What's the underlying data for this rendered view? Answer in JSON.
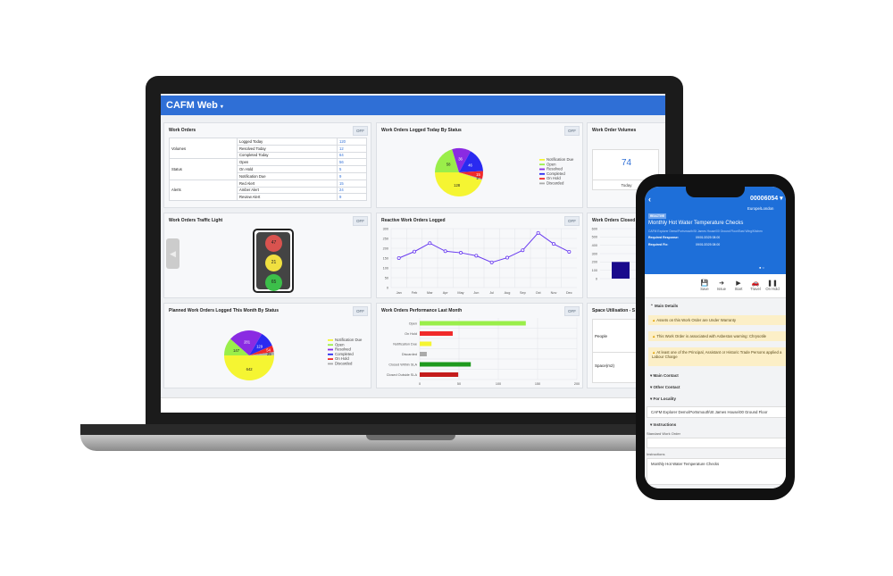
{
  "app": {
    "title": "CAFM Web",
    "caret": "▾"
  },
  "off_label": "OFF",
  "work_orders": {
    "title": "Work Orders",
    "groups": [
      {
        "name": "Volumes",
        "rows": [
          [
            "Logged Today",
            "120"
          ],
          [
            "Resolved Today",
            "12"
          ],
          [
            "Completed Today",
            "64"
          ]
        ]
      },
      {
        "name": "Status",
        "rows": [
          [
            "Open",
            "56"
          ],
          [
            "On Hold",
            "5"
          ],
          [
            "Notification Due",
            "9"
          ]
        ]
      },
      {
        "name": "Alerts",
        "rows": [
          [
            "Red Alert",
            "15"
          ],
          [
            "Amber Alert",
            "24"
          ],
          [
            "Review Alert",
            "9"
          ]
        ]
      }
    ]
  },
  "legend": [
    "Notification Due",
    "Open",
    "Resolved",
    "Completed",
    "On Hold",
    "Discarded"
  ],
  "colors": {
    "notification_due": "#f5f532",
    "open": "#9aee4a",
    "resolved": "#8a2be2",
    "completed": "#2a2af0",
    "on_hold": "#f02a2a",
    "discarded": "#aaaaaa",
    "accent": "#2f6fd6",
    "line": "#6a3cf0"
  },
  "traffic_light": {
    "title": "Work Orders Traffic Light",
    "red": "47",
    "amber": "21",
    "green": "65"
  },
  "volumes": {
    "title": "Work Order Volumes",
    "value": "74",
    "label": "Today"
  },
  "closed": {
    "title": "Work Orders Closed"
  },
  "space": {
    "title": "Space Utilisation - S",
    "rows": [
      "People",
      "Space(m2)"
    ]
  },
  "chart_data": [
    {
      "type": "pie",
      "title": "Work Orders Logged Today By Status",
      "categories": [
        "Notification Due",
        "Open",
        "Resolved",
        "Completed",
        "On Hold",
        "Discarded"
      ],
      "values": [
        128,
        58,
        36,
        46,
        15,
        2
      ],
      "legend": "right"
    },
    {
      "type": "line",
      "title": "Reactive Work Orders Logged",
      "categories": [
        "Jan",
        "Feb",
        "Mar",
        "Apr",
        "May",
        "Jun",
        "Jul",
        "Aug",
        "Sep",
        "Oct",
        "Nov",
        "Dec"
      ],
      "values": [
        150,
        183,
        226,
        185,
        177,
        162,
        128,
        152,
        190,
        278,
        222,
        182
      ],
      "ylim": [
        0,
        300
      ],
      "yticks": [
        0,
        50,
        100,
        150,
        200,
        250,
        300
      ],
      "grid": true
    },
    {
      "type": "pie",
      "title": "Planned Work Orders Logged This Month By Status",
      "categories": [
        "Notification Due",
        "Open",
        "Resolved",
        "Completed",
        "On Hold",
        "Discarded"
      ],
      "values": [
        642,
        147,
        281,
        129,
        54,
        25
      ],
      "legend": "right"
    },
    {
      "type": "bar",
      "orientation": "horizontal",
      "title": "Work Orders Performance Last Month",
      "categories": [
        "Open",
        "On Hold",
        "Notification Due",
        "Discarded",
        "Closed Within SLA",
        "Closed Outside SLA"
      ],
      "values": [
        135,
        42,
        15,
        9,
        65,
        49
      ],
      "colors": [
        "#9aee4a",
        "#f02a2a",
        "#f5f532",
        "#aaaaaa",
        "#1e9a1e",
        "#c41c1c"
      ],
      "xlim": [
        0,
        200
      ],
      "xticks": [
        0,
        50,
        100,
        150,
        200
      ],
      "grid": true
    },
    {
      "type": "bar",
      "title": "Work Orders Closed",
      "values": [
        200
      ],
      "ylim": [
        0,
        600
      ],
      "yticks": [
        0,
        100,
        200,
        300,
        400,
        500,
        600
      ],
      "colors": [
        "#1a0a8c"
      ]
    }
  ],
  "phone": {
    "wo_number": "00006054 ▾",
    "timezone": "Europe/London",
    "badge": "REACTIVE",
    "title": "Monthly Hot Water Temperature Checks",
    "location": "CAFM Explorer Demo\\Portsmouth\\St James House\\00 Ground Floor\\East Wing\\Kitchen",
    "req_response_label": "Required Response:",
    "req_response": "09/01/2025 08:00",
    "req_fix_label": "Required Fix:",
    "req_fix": "09/01/2025 08:00",
    "toolbar": [
      {
        "label": "Save",
        "icon": "💾"
      },
      {
        "label": "Issue",
        "icon": "➜"
      },
      {
        "label": "Start",
        "icon": "▶"
      },
      {
        "label": "Travel",
        "icon": "🚗"
      },
      {
        "label": "On Hold",
        "icon": "❚❚"
      }
    ],
    "main_details": "Main Details",
    "warnings": [
      "Assets on this Work Order are Under Warranty",
      "This Work Order is associated with Asbestos warning: Chrysotile",
      "At least one of the Principal, Assistant or Historic Trade Persons applied a Labour Charge"
    ],
    "main_contact": "Main Contact",
    "other_contact": "Other Contact",
    "for_locality": "For Locality",
    "locality": "CAFM Explorer Demo\\Portsmouth\\St James House\\00 Ground Floor",
    "instructions_section": "Instructions",
    "standard_wo_label": "Standard Work Order",
    "standard_wo": "",
    "instructions_label": "Instructions",
    "instructions": "Monthly Hot Water Temperature Checks"
  }
}
